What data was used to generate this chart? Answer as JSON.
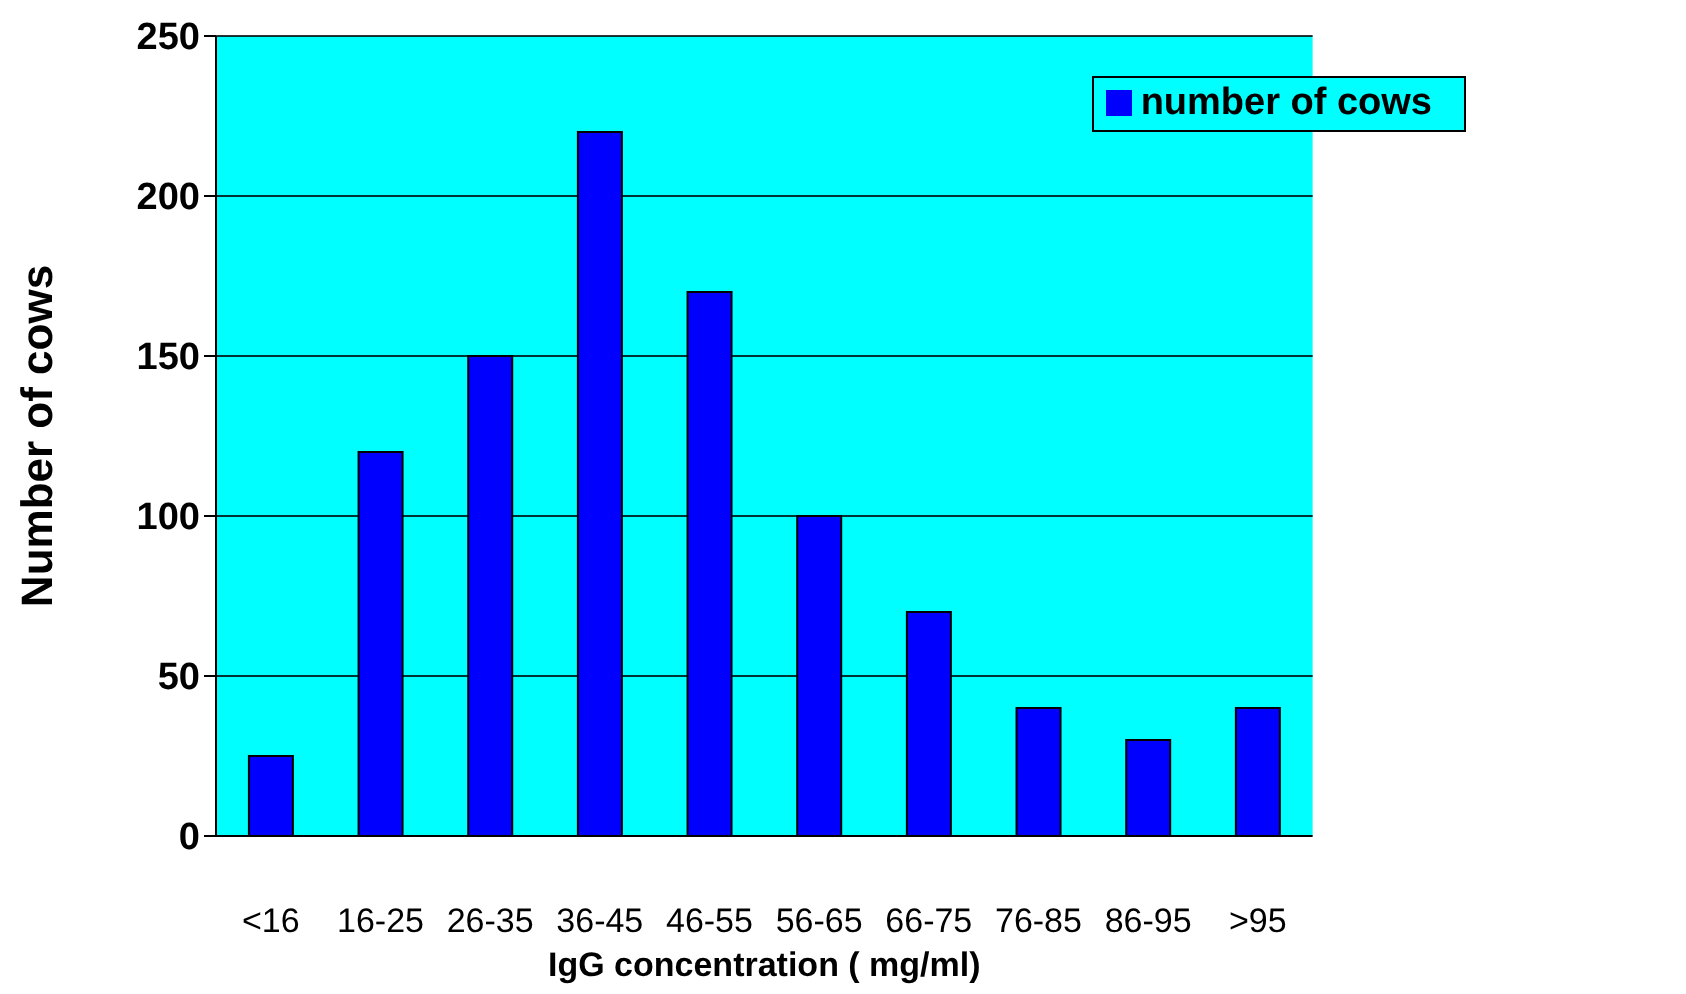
{
  "chart_data": {
    "type": "bar",
    "xlabel": "IgG concentration ( mg/ml)",
    "ylabel": "Number of cows",
    "categories": [
      "<16",
      "16-25",
      "26-35",
      "36-45",
      "46-55",
      "56-65",
      "66-75",
      "76-85",
      "86-95",
      ">95"
    ],
    "series": [
      {
        "name": "number of cows",
        "color": "#0000ff",
        "values": [
          25,
          120,
          150,
          220,
          170,
          100,
          70,
          40,
          30,
          40
        ]
      }
    ],
    "ylim": [
      0,
      250
    ],
    "yticks": [
      0,
      50,
      100,
      150,
      200,
      250
    ],
    "grid": "y",
    "legend": "top right"
  }
}
